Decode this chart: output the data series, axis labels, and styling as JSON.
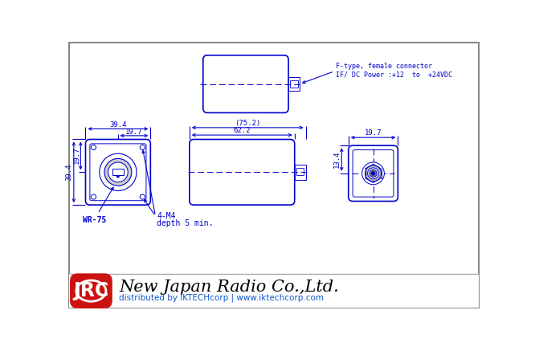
{
  "bg_color": "#ffffff",
  "drawing_area_color": "#ffffff",
  "line_color": "#0000cc",
  "footer_bg": "#ffffff",
  "footer_border": "#aaaaaa",
  "jrc_red": "#cc1111",
  "title_text": "New Japan Radio Co.,Ltd.",
  "subtitle_text": "distributed by IKTECHcorp | www.iktechcorp.com",
  "connector_label1": "F-type, female connector",
  "connector_label2": "IF/ DC Power :+12  to  +24VDC",
  "dim_394_w": "39.4",
  "dim_197_w": "19.7",
  "dim_394_h": "39.4",
  "dim_197_h": "19.7",
  "dim_752": "(75.2)",
  "dim_622": "62.2",
  "dim_197_r": "19.7",
  "dim_134": "13.4",
  "label_wr75": "WR-75",
  "label_4m4": "4-M4",
  "label_depth": "depth 5 min.",
  "outer_border_color": "#888888",
  "dim_font": 6.5,
  "label_font": 7.0
}
